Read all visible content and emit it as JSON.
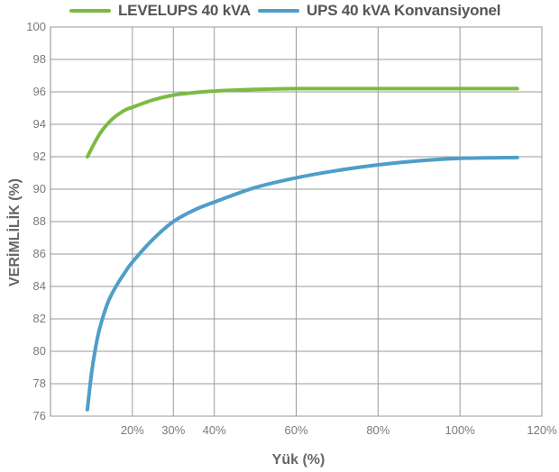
{
  "chart_data": {
    "type": "line",
    "xlabel": "Yük (%)",
    "ylabel": "VERİMLİLİK (%)",
    "xlim": [
      0,
      120
    ],
    "ylim": [
      76,
      100
    ],
    "xticks": [
      20,
      30,
      40,
      60,
      80,
      100,
      120
    ],
    "xtick_labels": [
      "20%",
      "30%",
      "40%",
      "60%",
      "80%",
      "100%",
      "120%"
    ],
    "yticks": [
      76,
      78,
      80,
      82,
      84,
      86,
      88,
      90,
      92,
      94,
      96,
      98,
      100
    ],
    "grid": true,
    "legend_position": "top",
    "series": [
      {
        "name": "LEVELUPS 40 kVA",
        "color": "#7dba43",
        "x": [
          9,
          12,
          15,
          18,
          20,
          25,
          30,
          35,
          40,
          50,
          60,
          70,
          80,
          90,
          100,
          114
        ],
        "y": [
          92.0,
          93.4,
          94.3,
          94.85,
          95.05,
          95.5,
          95.8,
          95.95,
          96.05,
          96.15,
          96.2,
          96.2,
          96.2,
          96.2,
          96.2,
          96.2
        ]
      },
      {
        "name": "UPS 40 kVA Konvansiyonel",
        "color": "#4e9ec8",
        "x": [
          9,
          10,
          11,
          12,
          14,
          16,
          18,
          20,
          25,
          30,
          35,
          40,
          50,
          60,
          70,
          80,
          90,
          100,
          114
        ],
        "y": [
          76.4,
          78.6,
          80.2,
          81.4,
          83.0,
          84.0,
          84.8,
          85.5,
          86.9,
          88.0,
          88.7,
          89.2,
          90.1,
          90.7,
          91.15,
          91.5,
          91.75,
          91.9,
          91.95
        ]
      }
    ]
  }
}
